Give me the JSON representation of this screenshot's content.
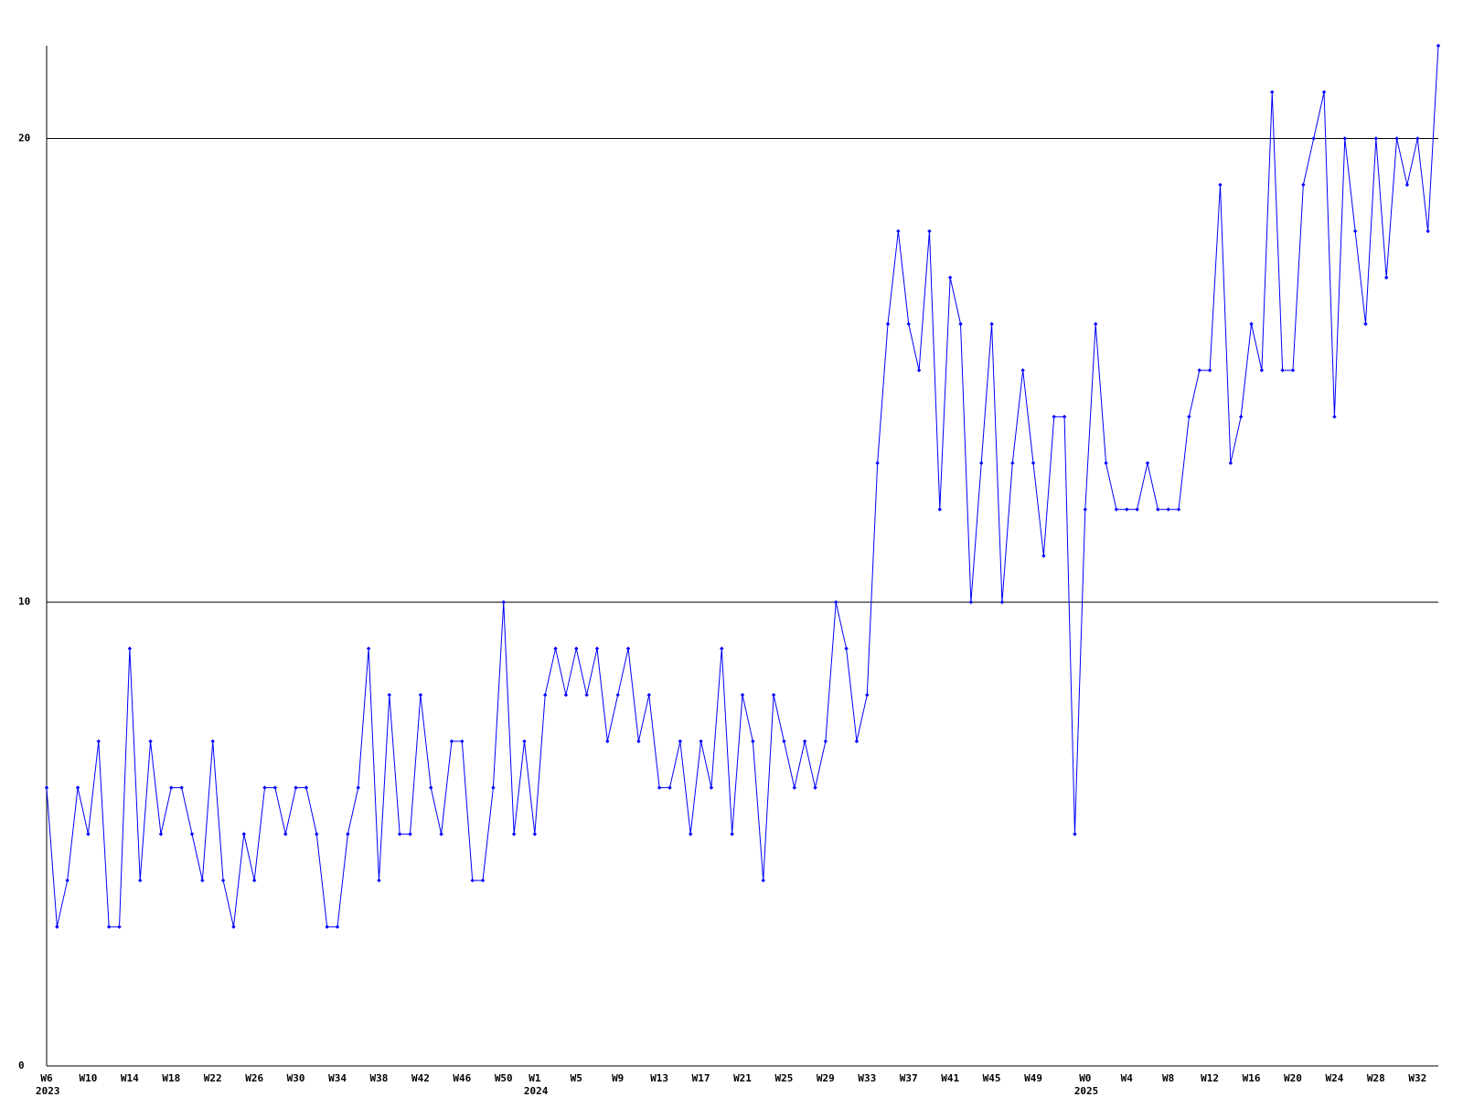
{
  "chart_data": {
    "type": "line",
    "color": "#0000ff",
    "grid": true,
    "ylim": [
      0,
      22
    ],
    "yticks": [
      0,
      10,
      20
    ],
    "categories": [
      "W6",
      null,
      null,
      null,
      "W10",
      null,
      null,
      null,
      "W14",
      null,
      null,
      null,
      "W18",
      null,
      null,
      null,
      "W22",
      null,
      null,
      null,
      "W26",
      null,
      null,
      null,
      "W30",
      null,
      null,
      null,
      "W34",
      null,
      null,
      null,
      "W38",
      null,
      null,
      null,
      "W42",
      null,
      null,
      null,
      "W46",
      null,
      null,
      null,
      "W50",
      null,
      null,
      "W1",
      null,
      null,
      null,
      "W5",
      null,
      null,
      null,
      "W9",
      null,
      null,
      null,
      "W13",
      null,
      null,
      null,
      "W17",
      null,
      null,
      null,
      "W21",
      null,
      null,
      null,
      "W25",
      null,
      null,
      null,
      "W29",
      null,
      null,
      null,
      "W33",
      null,
      null,
      null,
      "W37",
      null,
      null,
      null,
      "W41",
      null,
      null,
      null,
      "W45",
      null,
      null,
      null,
      "W49",
      null,
      null,
      null,
      null,
      "W0",
      null,
      null,
      null,
      "W4",
      null,
      null,
      null,
      "W8",
      null,
      null,
      null,
      "W12",
      null,
      null,
      null,
      "W16",
      null,
      null,
      null,
      "W20",
      null,
      null,
      null,
      "W24",
      null,
      null,
      null,
      "W28",
      null,
      null,
      null,
      "W32",
      null,
      null
    ],
    "year_labels": [
      "2023",
      null,
      null,
      null,
      null,
      null,
      null,
      null,
      null,
      null,
      null,
      null,
      null,
      null,
      null,
      null,
      null,
      null,
      null,
      null,
      null,
      null,
      null,
      null,
      null,
      null,
      null,
      null,
      null,
      null,
      null,
      null,
      null,
      null,
      null,
      null,
      null,
      null,
      null,
      null,
      null,
      null,
      null,
      null,
      null,
      null,
      null,
      "2024",
      null,
      null,
      null,
      null,
      null,
      null,
      null,
      null,
      null,
      null,
      null,
      null,
      null,
      null,
      null,
      null,
      null,
      null,
      null,
      null,
      null,
      null,
      null,
      null,
      null,
      null,
      null,
      null,
      null,
      null,
      null,
      null,
      null,
      null,
      null,
      null,
      null,
      null,
      null,
      null,
      null,
      null,
      null,
      null,
      null,
      null,
      null,
      null,
      null,
      null,
      null,
      null,
      "2025",
      null,
      null,
      null,
      null,
      null,
      null,
      null,
      null,
      null,
      null,
      null,
      null,
      null,
      null,
      null,
      null,
      null,
      null,
      null,
      null,
      null,
      null,
      null,
      null,
      null,
      null,
      null,
      null,
      null,
      null,
      null,
      null,
      null,
      null
    ],
    "values": [
      6,
      3,
      4,
      6,
      5,
      7,
      3,
      3,
      9,
      4,
      7,
      5,
      6,
      6,
      5,
      4,
      7,
      4,
      3,
      5,
      4,
      6,
      6,
      5,
      6,
      6,
      5,
      3,
      3,
      5,
      6,
      9,
      4,
      8,
      5,
      5,
      8,
      6,
      5,
      7,
      7,
      4,
      4,
      6,
      10,
      5,
      7,
      5,
      8,
      9,
      8,
      9,
      8,
      9,
      7,
      8,
      9,
      7,
      8,
      6,
      6,
      7,
      5,
      7,
      6,
      9,
      5,
      8,
      7,
      4,
      8,
      7,
      6,
      7,
      6,
      7,
      10,
      9,
      7,
      8,
      13,
      16,
      18,
      16,
      15,
      18,
      12,
      17,
      16,
      10,
      13,
      16,
      10,
      13,
      15,
      13,
      11,
      14,
      14,
      5,
      12,
      16,
      13,
      12,
      12,
      12,
      13,
      12,
      12,
      12,
      14,
      15,
      15,
      19,
      13,
      14,
      16,
      15,
      21,
      15,
      15,
      19,
      20,
      21,
      14,
      20,
      18,
      16,
      20,
      17,
      20,
      19,
      20,
      18,
      22
    ]
  }
}
